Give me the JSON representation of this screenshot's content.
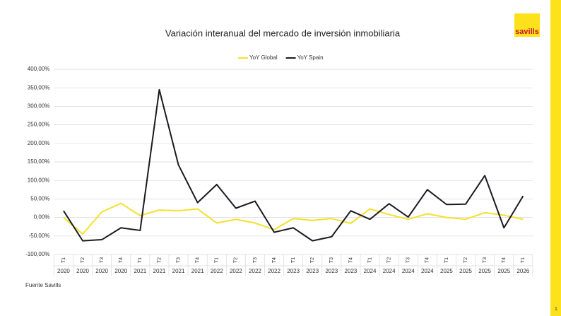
{
  "chart_data": {
    "type": "line",
    "title": "Variación interanual del mercado de inversión inmobiliaria",
    "categories": [
      {
        "quarter": "T1",
        "year": "2020"
      },
      {
        "quarter": "T2",
        "year": "2020"
      },
      {
        "quarter": "T3",
        "year": "2020"
      },
      {
        "quarter": "T4",
        "year": "2020"
      },
      {
        "quarter": "T1",
        "year": "2021"
      },
      {
        "quarter": "T2",
        "year": "2021"
      },
      {
        "quarter": "T3",
        "year": "2021"
      },
      {
        "quarter": "T4",
        "year": "2021"
      },
      {
        "quarter": "T1",
        "year": "2022"
      },
      {
        "quarter": "T2",
        "year": "2022"
      },
      {
        "quarter": "T3",
        "year": "2022"
      },
      {
        "quarter": "T4",
        "year": "2022"
      },
      {
        "quarter": "T1",
        "year": "2023"
      },
      {
        "quarter": "T2",
        "year": "2023"
      },
      {
        "quarter": "T3",
        "year": "2023"
      },
      {
        "quarter": "T4",
        "year": "2023"
      },
      {
        "quarter": "T1",
        "year": "2024"
      },
      {
        "quarter": "T2",
        "year": "2024"
      },
      {
        "quarter": "T3",
        "year": "2024"
      },
      {
        "quarter": "T4",
        "year": "2024"
      },
      {
        "quarter": "T1",
        "year": "2025"
      },
      {
        "quarter": "T2",
        "year": "2025"
      },
      {
        "quarter": "T3",
        "year": "2025"
      },
      {
        "quarter": "T4",
        "year": "2025"
      },
      {
        "quarter": "T1",
        "year": "2026"
      }
    ],
    "series": [
      {
        "name": "YoY Global",
        "color": "#f5e12a",
        "values": [
          0,
          -45,
          15,
          38,
          5,
          20,
          18,
          23,
          -15,
          -5,
          -15,
          -33,
          -3,
          -8,
          -3,
          -16,
          23,
          8,
          -5,
          10,
          0,
          -5,
          13,
          6,
          -5
        ]
      },
      {
        "name": "YoY Spain",
        "color": "#1a1a24",
        "values": [
          18,
          -63,
          -60,
          -28,
          -35,
          345,
          142,
          40,
          89,
          25,
          44,
          -40,
          -28,
          -63,
          -52,
          18,
          -5,
          37,
          1,
          75,
          35,
          36,
          113,
          -28,
          58
        ]
      }
    ],
    "ylim": [
      -100,
      400
    ],
    "yticks": [
      {
        "value": -100,
        "label": "-100,00%"
      },
      {
        "value": -50,
        "label": "-50,00%"
      },
      {
        "value": 0,
        "label": "0,00%"
      },
      {
        "value": 50,
        "label": "50,00%"
      },
      {
        "value": 100,
        "label": "100,00%"
      },
      {
        "value": 150,
        "label": "150,00%"
      },
      {
        "value": 200,
        "label": "200,00%"
      },
      {
        "value": 250,
        "label": "250,00%"
      },
      {
        "value": 300,
        "label": "300,00%"
      },
      {
        "value": 350,
        "label": "350,00%"
      },
      {
        "value": 400,
        "label": "400,00%"
      }
    ],
    "grid": true,
    "legend": "top"
  },
  "source": "Fuente Savills",
  "logo": "savills",
  "page_number": "1"
}
